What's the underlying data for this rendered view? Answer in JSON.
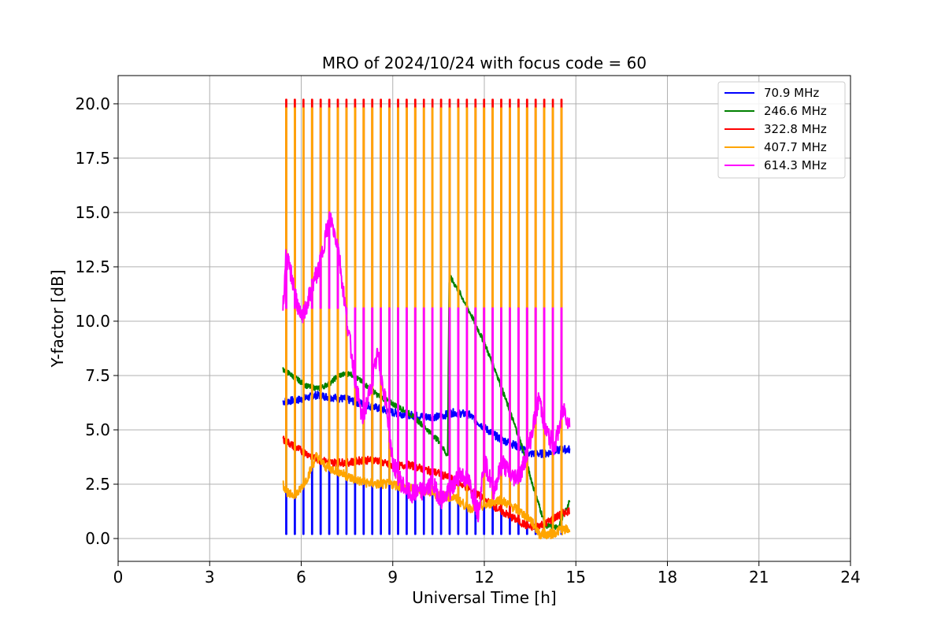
{
  "chart_data": {
    "type": "line",
    "title": "MRO of 2024/10/24 with focus code = 60",
    "xlabel": "Universal Time [h]",
    "ylabel": "Y-factor [dB]",
    "xlim": [
      0,
      24
    ],
    "ylim": [
      -1.05,
      21.3
    ],
    "xticks": [
      0,
      3,
      6,
      9,
      12,
      15,
      18,
      21,
      24
    ],
    "xtick_labels": [
      "0",
      "3",
      "6",
      "9",
      "12",
      "15",
      "18",
      "21",
      "24"
    ],
    "yticks": [
      0,
      2.5,
      5,
      7.5,
      10,
      12.5,
      15,
      17.5,
      20
    ],
    "ytick_labels": [
      "0.0",
      "2.5",
      "5.0",
      "7.5",
      "10.0",
      "12.5",
      "15.0",
      "17.5",
      "20.0"
    ],
    "grid": true,
    "legend_position": "top-right",
    "calibration_spikes": {
      "start_hour": 5.5,
      "end_hour": 14.8,
      "count": 34,
      "spike_top_322": 20.2,
      "spike_top_407": 19.8,
      "spike_top_614": 10.6,
      "spike_bottom_70": 0.2
    },
    "series": [
      {
        "name": " 70.9 MHz",
        "color": "#0000ff",
        "x": [
          5.4,
          6.0,
          6.5,
          7.0,
          7.5,
          8.0,
          8.5,
          9.0,
          9.5,
          10.0,
          10.5,
          11.0,
          11.5,
          12.0,
          12.5,
          13.0,
          13.5,
          14.0,
          14.5,
          14.8
        ],
        "y": [
          6.3,
          6.4,
          6.6,
          6.5,
          6.4,
          6.2,
          6.0,
          5.8,
          5.7,
          5.6,
          5.6,
          5.8,
          5.7,
          5.1,
          4.6,
          4.3,
          3.9,
          3.9,
          4.1,
          4.1
        ]
      },
      {
        "name": " 246.6 MHz",
        "color": "#008000",
        "x": [
          5.4,
          5.8,
          6.2,
          6.6,
          7.0,
          7.2,
          7.6,
          8.0,
          8.5,
          9.0,
          9.5,
          10.0,
          10.5,
          10.8,
          10.85,
          11.2,
          11.6,
          12.0,
          12.4,
          12.8,
          13.2,
          13.6,
          14.0,
          14.4,
          14.8
        ],
        "y": [
          7.8,
          7.4,
          7.0,
          6.9,
          7.2,
          7.5,
          7.6,
          7.2,
          6.6,
          6.2,
          5.8,
          5.2,
          4.5,
          3.8,
          12.1,
          11.3,
          10.2,
          9.0,
          7.6,
          6.0,
          4.4,
          2.4,
          0.6,
          0.5,
          1.7
        ]
      },
      {
        "name": " 322.8 MHz",
        "color": "#ff0000",
        "x": [
          5.4,
          5.8,
          6.2,
          6.6,
          7.0,
          7.5,
          8.0,
          8.5,
          9.0,
          9.5,
          10.0,
          10.5,
          11.0,
          11.5,
          12.0,
          12.5,
          13.0,
          13.5,
          14.0,
          14.5,
          14.8
        ],
        "y": [
          4.6,
          4.2,
          3.9,
          3.6,
          3.5,
          3.5,
          3.6,
          3.6,
          3.3,
          3.4,
          3.2,
          3.0,
          2.7,
          2.3,
          1.8,
          1.3,
          0.9,
          0.5,
          0.7,
          1.1,
          1.3
        ]
      },
      {
        "name": " 407.7 MHz",
        "color": "#ffa500",
        "x": [
          5.4,
          5.6,
          5.9,
          6.2,
          6.5,
          6.8,
          7.2,
          7.6,
          8.0,
          8.5,
          9.0,
          9.5,
          10.0,
          10.5,
          11.0,
          11.5,
          12.0,
          12.5,
          13.0,
          13.5,
          13.8,
          14.2,
          14.5,
          14.8
        ],
        "y": [
          2.5,
          2.0,
          2.1,
          2.8,
          3.8,
          3.3,
          3.1,
          2.8,
          2.6,
          2.5,
          2.5,
          2.3,
          2.2,
          2.0,
          1.9,
          1.4,
          1.5,
          1.8,
          1.4,
          0.9,
          0.2,
          0.2,
          0.4,
          0.4
        ]
      },
      {
        "name": " 614.3 MHz",
        "color": "#ff00ff",
        "x": [
          5.4,
          5.5,
          5.7,
          6.0,
          6.2,
          6.4,
          6.6,
          6.8,
          6.95,
          7.2,
          7.5,
          7.8,
          8.0,
          8.3,
          8.5,
          8.8,
          9.0,
          9.3,
          9.6,
          10.0,
          10.3,
          10.6,
          10.9,
          11.2,
          11.5,
          11.8,
          12.0,
          12.3,
          12.6,
          12.9,
          13.2,
          13.5,
          13.8,
          14.0,
          14.3,
          14.6,
          14.8
        ],
        "y": [
          10.5,
          13.0,
          12.0,
          10.0,
          10.8,
          11.8,
          12.5,
          14.0,
          14.8,
          13.5,
          10.0,
          7.0,
          5.5,
          7.0,
          8.5,
          6.0,
          3.5,
          2.5,
          2.0,
          2.2,
          2.5,
          1.8,
          2.2,
          3.0,
          2.6,
          1.2,
          3.6,
          2.2,
          3.5,
          2.8,
          3.0,
          4.5,
          6.5,
          5.0,
          4.2,
          6.0,
          5.2
        ]
      }
    ]
  }
}
